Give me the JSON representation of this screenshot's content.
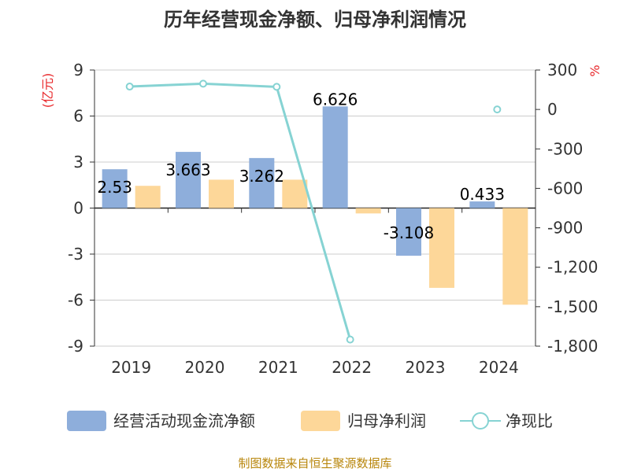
{
  "title": "历年经营现金净额、归母净利润情况",
  "source": "制图数据来自恒生聚源数据库",
  "chart_data": {
    "type": "bar",
    "title": "历年经营现金净额、归母净利润情况",
    "categories": [
      "2019",
      "2020",
      "2021",
      "2022",
      "2023",
      "2024"
    ],
    "left_axis": {
      "unit": "(亿元)",
      "ylim": [
        -9,
        9
      ],
      "ticks": [
        9,
        6,
        3,
        0,
        -3,
        -6,
        -9
      ],
      "tick_labels": [
        "9",
        "6",
        "3",
        "0",
        "-3",
        "-6",
        "-9"
      ]
    },
    "right_axis": {
      "unit": "%",
      "ylim": [
        -1800,
        300
      ],
      "ticks": [
        300,
        0,
        -300,
        -600,
        -900,
        -1200,
        -1500,
        -1800
      ],
      "tick_labels": [
        "300",
        "0",
        "-300",
        "-600",
        "-900",
        "-1,200",
        "-1,500",
        "-1,800"
      ]
    },
    "grid": true,
    "legend_position": "bottom",
    "series": [
      {
        "name": "经营活动现金流净额",
        "type": "bar",
        "axis": "left",
        "color": "#8eaedb",
        "values": [
          2.53,
          3.663,
          3.262,
          6.626,
          -3.108,
          0.433
        ],
        "labels": [
          "2.53",
          "3.663",
          "3.262",
          "6.626",
          "-3.108",
          "0.433"
        ]
      },
      {
        "name": "归母净利润",
        "type": "bar",
        "axis": "left",
        "color": "#fdd799",
        "values": [
          1.45,
          1.85,
          1.85,
          -0.35,
          -5.2,
          -6.3
        ],
        "labels": []
      },
      {
        "name": "净现比",
        "type": "line",
        "axis": "right",
        "color": "#86d3d3",
        "values": [
          174,
          196,
          172,
          -1750,
          null,
          0
        ],
        "labels": []
      }
    ]
  }
}
